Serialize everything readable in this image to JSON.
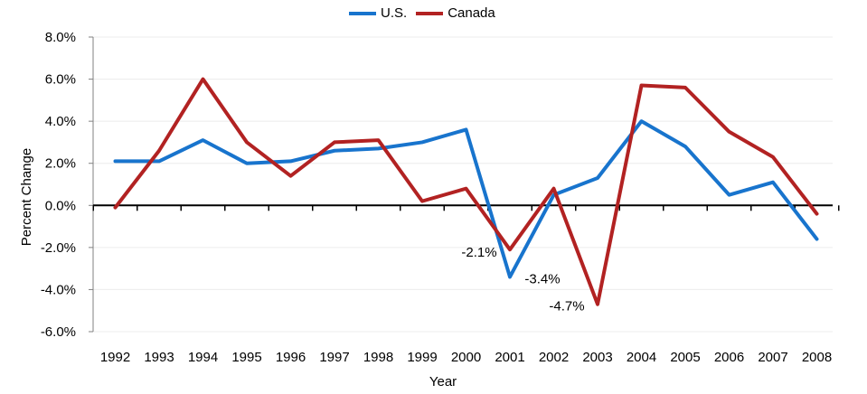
{
  "chart_data": {
    "type": "line",
    "title": "",
    "xlabel": "Year",
    "ylabel": "Percent Change",
    "categories": [
      "1992",
      "1993",
      "1994",
      "1995",
      "1996",
      "1997",
      "1998",
      "1999",
      "2000",
      "2001",
      "2002",
      "2003",
      "2004",
      "2005",
      "2006",
      "2007",
      "2008"
    ],
    "ylim": [
      -6.0,
      8.0
    ],
    "yticks": [
      8.0,
      6.0,
      4.0,
      2.0,
      0.0,
      -2.0,
      -4.0,
      -6.0
    ],
    "ytick_labels": [
      "8.0%",
      "6.0%",
      "4.0%",
      "2.0%",
      "0.0%",
      "-2.0%",
      "-4.0%",
      "-6.0%"
    ],
    "grid": true,
    "legend_position": "top-center",
    "series": [
      {
        "name": "U.S.",
        "color": "#1874CD",
        "values": [
          2.1,
          2.1,
          3.1,
          2.0,
          2.1,
          2.6,
          2.7,
          3.0,
          3.6,
          -3.4,
          0.5,
          1.3,
          4.0,
          2.8,
          0.5,
          1.1,
          -1.6
        ]
      },
      {
        "name": "Canada",
        "color": "#B22222",
        "values": [
          -0.1,
          2.6,
          6.0,
          3.0,
          1.4,
          3.0,
          3.1,
          0.2,
          0.8,
          -2.1,
          0.8,
          -4.7,
          5.7,
          5.6,
          3.5,
          2.3,
          -0.4
        ]
      }
    ],
    "annotations": [
      {
        "text": "-2.1%",
        "category": "2001",
        "value": -2.1,
        "series": "Canada"
      },
      {
        "text": "-3.4%",
        "category": "2001",
        "value": -3.4,
        "series": "U.S."
      },
      {
        "text": "-4.7%",
        "category": "2003",
        "value": -4.7,
        "series": "Canada"
      }
    ]
  }
}
